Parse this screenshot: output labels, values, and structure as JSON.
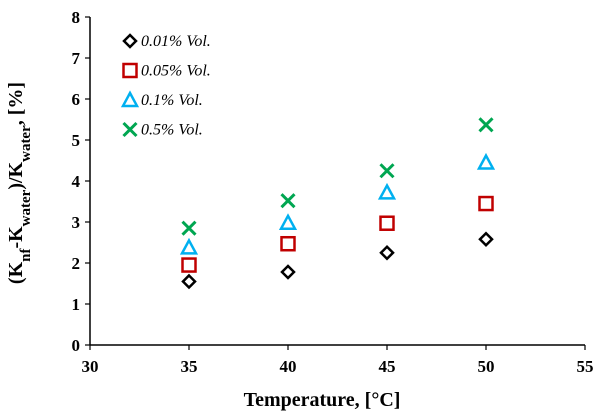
{
  "chart_data": {
    "type": "scatter",
    "xlabel": "Temperature, [°C]",
    "ylabel": "(K_nf-K_water)/K_water, [%]",
    "ylabel_parts": [
      {
        "text": "(K",
        "sub": false
      },
      {
        "text": "nf",
        "sub": true
      },
      {
        "text": "-K",
        "sub": false
      },
      {
        "text": "water",
        "sub": true
      },
      {
        "text": ")/K",
        "sub": false
      },
      {
        "text": "water",
        "sub": true
      },
      {
        "text": ", [%]",
        "sub": false
      }
    ],
    "xlim": [
      30,
      55
    ],
    "ylim": [
      0,
      8
    ],
    "xticks": [
      30,
      35,
      40,
      45,
      50,
      55
    ],
    "yticks": [
      0,
      1,
      2,
      3,
      4,
      5,
      6,
      7,
      8
    ],
    "grid": false,
    "legend_position": "top-left",
    "x": [
      35,
      40,
      45,
      50
    ],
    "series": [
      {
        "name": "0.01% Vol.",
        "marker": "diamond",
        "color": "#000000",
        "values": [
          1.55,
          1.78,
          2.25,
          2.58
        ]
      },
      {
        "name": "0.05% Vol.",
        "marker": "square",
        "color": "#c00000",
        "values": [
          1.95,
          2.47,
          2.97,
          3.45
        ]
      },
      {
        "name": "0.1% Vol.",
        "marker": "triangle",
        "color": "#00b0f0",
        "values": [
          2.38,
          2.98,
          3.72,
          4.45
        ]
      },
      {
        "name": "0.5% Vol.",
        "marker": "x",
        "color": "#00a651",
        "values": [
          2.85,
          3.52,
          4.25,
          5.37
        ]
      }
    ]
  }
}
